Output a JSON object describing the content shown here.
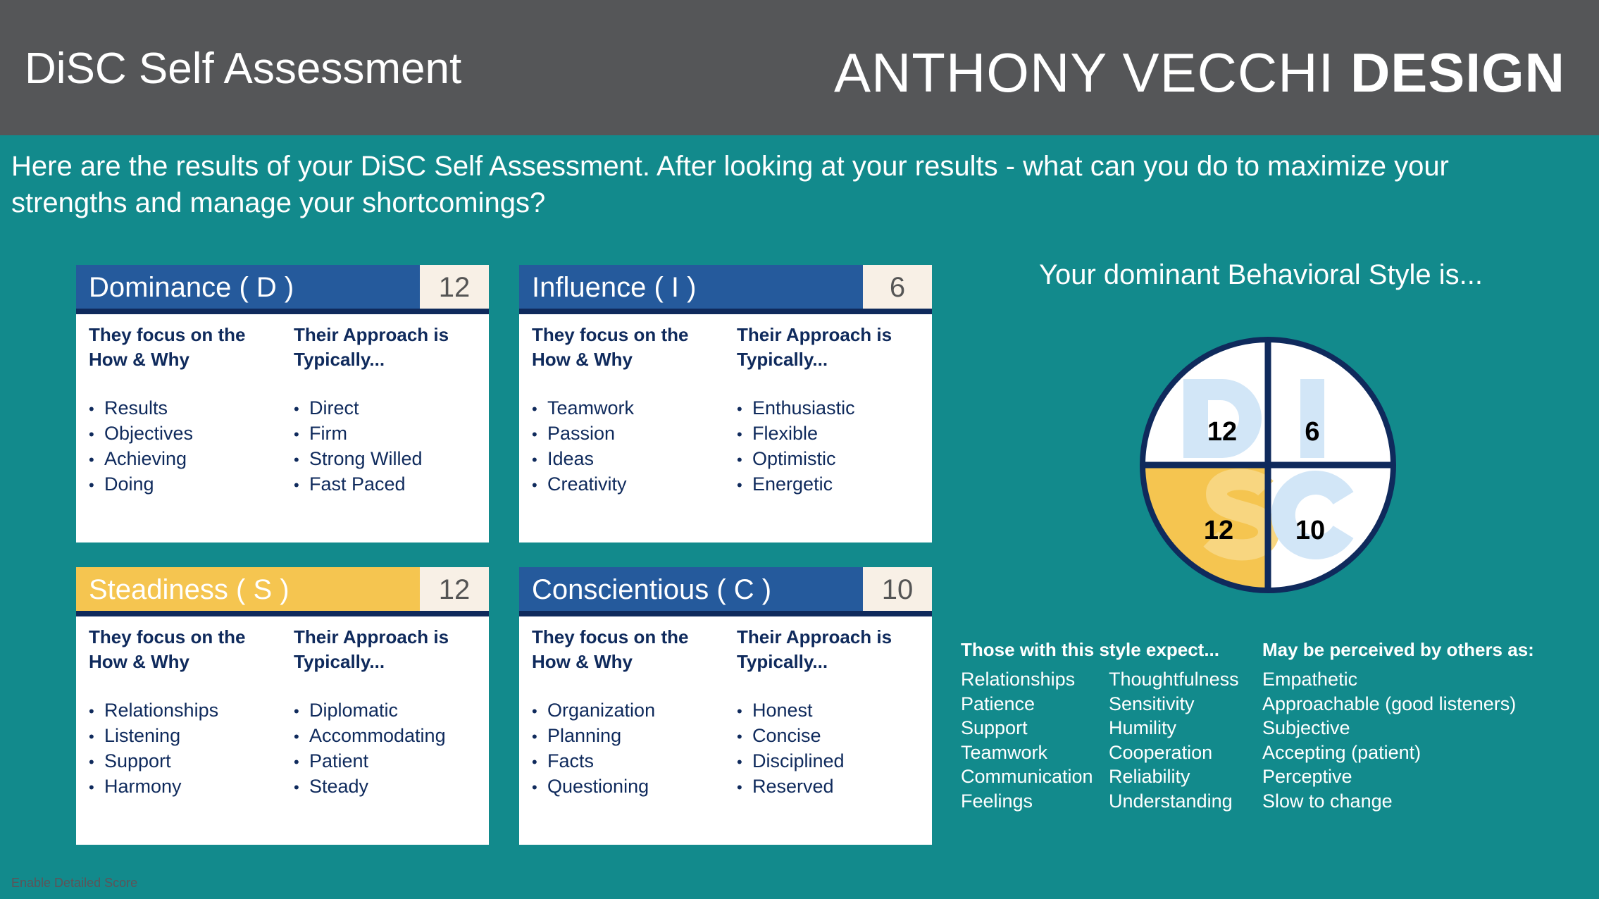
{
  "header": {
    "title": "DiSC Self Assessment",
    "brand_light": "ANTHONY VECCHI",
    "brand_bold": "DESIGN"
  },
  "intro": "Here are the results of your DiSC Self Assessment. After looking at your results - what can you do to maximize your strengths and manage your shortcomings?",
  "cards": [
    {
      "name": "Dominance ( D )",
      "score": "12",
      "focus_heading": "They focus on the How & Why",
      "approach_heading": "Their Approach is Typically...",
      "focus": [
        "Results",
        "Objectives",
        "Achieving",
        "Doing"
      ],
      "approach": [
        "Direct",
        "Firm",
        "Strong Willed",
        "Fast Paced"
      ]
    },
    {
      "name": "Influence ( I )",
      "score": "6",
      "focus_heading": "They focus on the How & Why",
      "approach_heading": "Their Approach is Typically...",
      "focus": [
        "Teamwork",
        "Passion",
        "Ideas",
        "Creativity"
      ],
      "approach": [
        "Enthusiastic",
        "Flexible",
        "Optimistic",
        "Energetic"
      ]
    },
    {
      "name": "Steadiness ( S )",
      "score": "12",
      "focus_heading": "They focus on the How & Why",
      "approach_heading": "Their Approach is Typically...",
      "focus": [
        "Relationships",
        "Listening",
        "Support",
        "Harmony"
      ],
      "approach": [
        "Diplomatic",
        "Accommodating",
        "Patient",
        "Steady"
      ]
    },
    {
      "name": "Conscientious ( C )",
      "score": "10",
      "focus_heading": "They focus on the How & Why",
      "approach_heading": "Their Approach is Typically...",
      "focus": [
        "Organization",
        "Planning",
        "Facts",
        "Questioning"
      ],
      "approach": [
        "Honest",
        "Concise",
        "Disciplined",
        "Reserved"
      ]
    }
  ],
  "dominant_heading": "Your dominant Behavioral Style is...",
  "disc_wheel": {
    "letters": [
      "D",
      "I",
      "S",
      "C"
    ],
    "scores": [
      "12",
      "6",
      "12",
      "10"
    ],
    "highlighted": "S"
  },
  "expect": {
    "heading": "Those with this style expect...",
    "col1": [
      "Relationships",
      "Patience",
      "Support",
      "Teamwork",
      "Communication",
      "Feelings"
    ],
    "col2": [
      "Thoughtfulness",
      "Sensitivity",
      "Humility",
      "Cooperation",
      "Reliability",
      "Understanding"
    ]
  },
  "perceived": {
    "heading": "May be perceived by others as:",
    "items": [
      "Empathetic",
      "Approachable (good listeners)",
      "Subjective",
      "Accepting (patient)",
      "Perceptive",
      "Slow to change"
    ]
  },
  "footer_link": "Enable Detailed Score",
  "colors": {
    "header_bg": "#555658",
    "page_bg": "#128a8c",
    "card_blue": "#255a9c",
    "navy": "#0f2a5c",
    "highlight_yellow": "#f5c550",
    "letter_blue": "#d2e6f7"
  }
}
